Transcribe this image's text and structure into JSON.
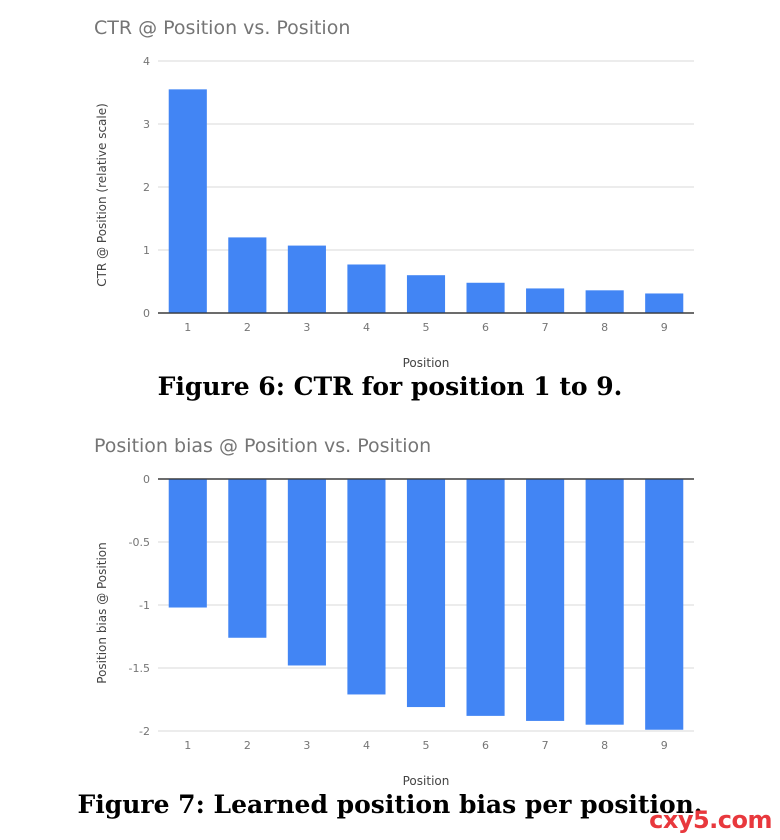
{
  "chart_data": [
    {
      "type": "bar",
      "title": "CTR @ Position vs. Position",
      "xlabel": "Position",
      "ylabel": "CTR @ Position (relative scale)",
      "categories": [
        "1",
        "2",
        "3",
        "4",
        "5",
        "6",
        "7",
        "8",
        "9"
      ],
      "values": [
        3.55,
        1.2,
        1.07,
        0.77,
        0.6,
        0.48,
        0.39,
        0.36,
        0.31
      ],
      "yticks": [
        "0",
        "1",
        "2",
        "3",
        "4"
      ],
      "ylim": [
        0,
        4
      ],
      "grid": true,
      "bar_color": "#4285f4"
    },
    {
      "type": "bar",
      "title": "Position bias @ Position vs. Position",
      "xlabel": "Position",
      "ylabel": "Position bias @ Position",
      "categories": [
        "1",
        "2",
        "3",
        "4",
        "5",
        "6",
        "7",
        "8",
        "9"
      ],
      "values": [
        -1.02,
        -1.26,
        -1.48,
        -1.71,
        -1.81,
        -1.88,
        -1.92,
        -1.95,
        -1.99
      ],
      "yticks": [
        "0",
        "-0.5",
        "-1",
        "-1.5",
        "-2"
      ],
      "ylim": [
        -2,
        0
      ],
      "grid": true,
      "bar_color": "#4285f4"
    }
  ],
  "captions": {
    "figure6": "Figure 6: CTR for position 1 to 9.",
    "figure7": "Figure 7: Learned position bias per position."
  },
  "watermark": "cxy5.com"
}
